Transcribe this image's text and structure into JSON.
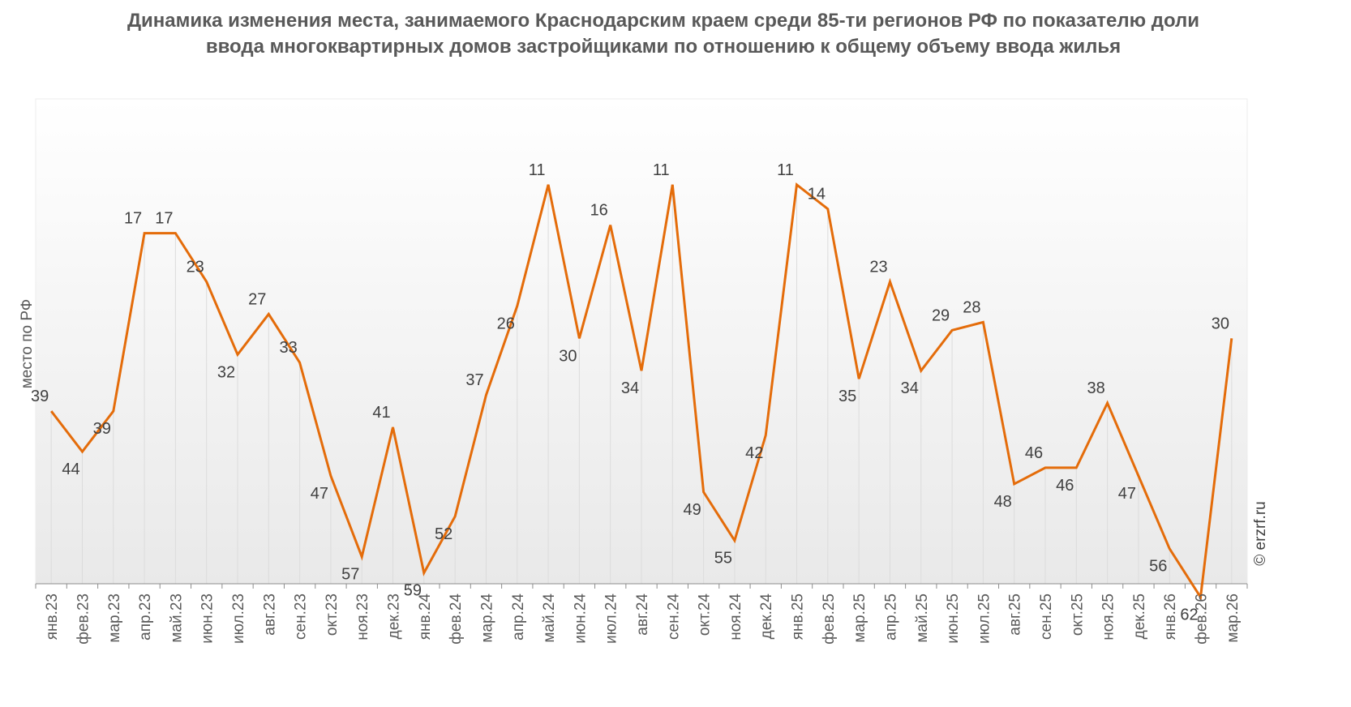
{
  "chart_data": {
    "type": "line",
    "title": "Динамика изменения места, занимаемого Краснодарским краем среди 85-ти регионов РФ по показателю доли ввода многоквартирных домов застройщиками по отношению к общему объему ввода жилья",
    "ylabel": "место по РФ",
    "xlabel": "",
    "y_axis_inverted": true,
    "ylim": [
      1,
      85
    ],
    "grid": false,
    "legend": "none",
    "categories": [
      "янв.23",
      "фев.23",
      "мар.23",
      "апр.23",
      "май.23",
      "июн.23",
      "июл.23",
      "авг.23",
      "сен.23",
      "окт.23",
      "ноя.23",
      "дек.23",
      "янв.24",
      "фев.24",
      "мар.24",
      "апр.24",
      "май.24",
      "июн.24",
      "июл.24",
      "авг.24",
      "сен.24",
      "окт.24",
      "ноя.24",
      "дек.24",
      "янв.25",
      "фев.25",
      "мар.25",
      "апр.25",
      "май.25",
      "июн.25",
      "июл.25",
      "авг.25",
      "сен.25",
      "окт.25",
      "ноя.25",
      "дек.25",
      "янв.26",
      "фев.26",
      "мар.26"
    ],
    "series": [
      {
        "values": [
          39,
          44,
          39,
          17,
          17,
          23,
          32,
          27,
          33,
          47,
          57,
          41,
          59,
          52,
          37,
          26,
          11,
          30,
          16,
          34,
          11,
          49,
          55,
          42,
          11,
          14,
          35,
          23,
          34,
          29,
          28,
          48,
          46,
          46,
          38,
          47,
          56,
          62,
          30
        ],
        "color": "#E46C0A"
      }
    ]
  },
  "credit": "© erzrf.ru"
}
